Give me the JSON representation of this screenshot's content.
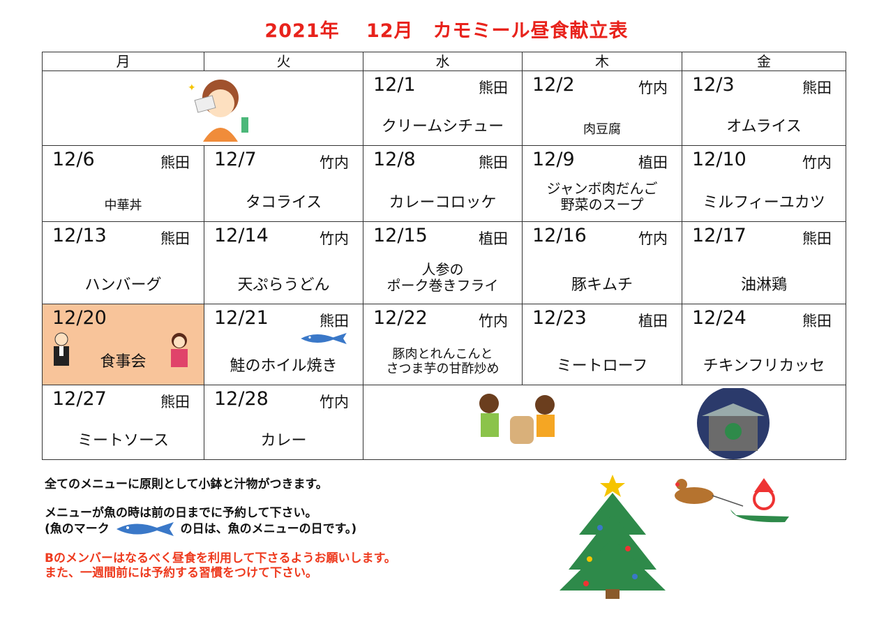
{
  "title": {
    "year": "2021年",
    "month": "12月",
    "name": "カモミール昼食献立表"
  },
  "weekdays": [
    "月",
    "火",
    "水",
    "木",
    "金"
  ],
  "colors": {
    "title": "#e8231c",
    "highlight": "#f8c49a",
    "fish": "#3a78c8",
    "notice": "#ee3a1e"
  },
  "weeks": [
    [
      {
        "blank": true,
        "span": 2,
        "icon": "cleaning-lady-illustration"
      },
      {
        "date": "12/1",
        "staff": "熊田",
        "menu": [
          "クリームシチュー"
        ]
      },
      {
        "date": "12/2",
        "staff": "竹内",
        "menu": [
          "肉豆腐"
        ],
        "small": true
      },
      {
        "date": "12/3",
        "staff": "熊田",
        "menu": [
          "オムライス"
        ]
      }
    ],
    [
      {
        "date": "12/6",
        "staff": "熊田",
        "menu": [
          "中華丼"
        ],
        "small": true
      },
      {
        "date": "12/7",
        "staff": "竹内",
        "menu": [
          "タコライス"
        ]
      },
      {
        "date": "12/8",
        "staff": "熊田",
        "menu": [
          "カレーコロッケ"
        ]
      },
      {
        "date": "12/9",
        "staff": "植田",
        "menu": [
          "ジャンボ肉だんご",
          "野菜のスープ"
        ]
      },
      {
        "date": "12/10",
        "staff": "竹内",
        "menu": [
          "ミルフィーユカツ"
        ]
      }
    ],
    [
      {
        "date": "12/13",
        "staff": "熊田",
        "menu": [
          "ハンバーグ"
        ]
      },
      {
        "date": "12/14",
        "staff": "竹内",
        "menu": [
          "天ぷらうどん"
        ]
      },
      {
        "date": "12/15",
        "staff": "植田",
        "menu": [
          "人参の",
          "ポーク巻きフライ"
        ]
      },
      {
        "date": "12/16",
        "staff": "竹内",
        "menu": [
          "豚キムチ"
        ]
      },
      {
        "date": "12/17",
        "staff": "熊田",
        "menu": [
          "油淋鶏"
        ]
      }
    ],
    [
      {
        "date": "12/20",
        "staff": "",
        "menu": [
          "食事会"
        ],
        "highlight": true
      },
      {
        "date": "12/21",
        "staff": "熊田",
        "menu": [
          "鮭のホイル焼き"
        ],
        "fish": true
      },
      {
        "date": "12/22",
        "staff": "竹内",
        "menu": [
          "豚肉とれんこんと",
          "さつま芋の甘酢炒め"
        ],
        "small": true
      },
      {
        "date": "12/23",
        "staff": "植田",
        "menu": [
          "ミートローフ"
        ]
      },
      {
        "date": "12/24",
        "staff": "熊田",
        "menu": [
          "チキンフリカッセ"
        ]
      }
    ],
    [
      {
        "date": "12/27",
        "staff": "熊田",
        "menu": [
          "ミートソース"
        ]
      },
      {
        "date": "12/28",
        "staff": "竹内",
        "menu": [
          "カレー"
        ]
      },
      {
        "blank": true,
        "span": 3,
        "icon": "mochi-pounding-and-temple-bell-illustration"
      }
    ]
  ],
  "notes": {
    "line1": "全てのメニューに原則として小鉢と汁物がつきます。",
    "line2": "メニューが魚の時は前の日までに予約して下さい。",
    "line3a": "(魚のマーク",
    "line3b": "の日は、魚のメニューの日です。)",
    "red1": "Bのメンバーはなるべく昼食を利用して下さるようお願いします。",
    "red2": "また、一週間前には予約する習慣をつけて下さい。"
  }
}
